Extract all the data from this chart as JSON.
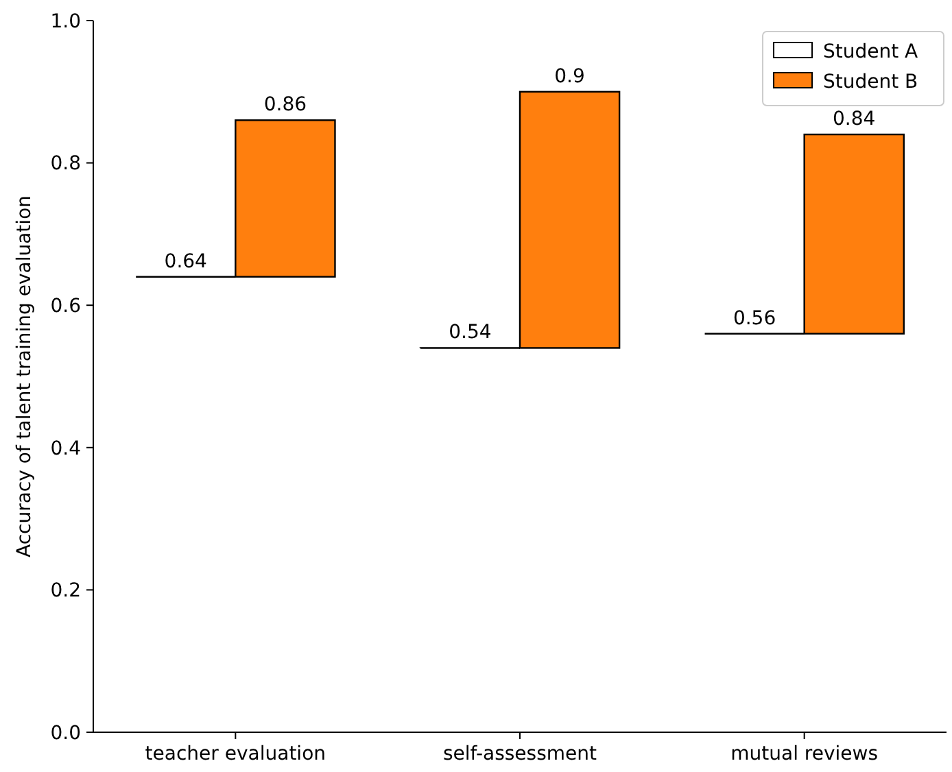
{
  "chart_data": {
    "type": "bar",
    "ylabel": "Accuracy of talent training evaluation",
    "categories": [
      "teacher evaluation",
      "self-assessment",
      "mutual reviews"
    ],
    "series": [
      {
        "name": "Student A",
        "color": "#ffffff",
        "values": [
          0.64,
          0.54,
          0.56
        ],
        "value_labels": [
          "0.64",
          "0.54",
          "0.56"
        ]
      },
      {
        "name": "Student B",
        "color": "#ff7f0e",
        "values": [
          0.22,
          0.36,
          0.28
        ],
        "base": [
          0.64,
          0.54,
          0.56
        ],
        "value_labels": [
          "0.86",
          "0.9",
          "0.84"
        ]
      }
    ],
    "ylim": [
      0,
      1
    ],
    "yticks": [
      {
        "value": 0,
        "label": "0.0"
      },
      {
        "value": 0.2,
        "label": "0.2"
      },
      {
        "value": 0.4,
        "label": "0.4"
      },
      {
        "value": 0.6,
        "label": "0.6"
      },
      {
        "value": 0.8,
        "label": "0.8"
      },
      {
        "value": 1,
        "label": "1.0"
      }
    ],
    "grid": false,
    "legend": "top right"
  }
}
